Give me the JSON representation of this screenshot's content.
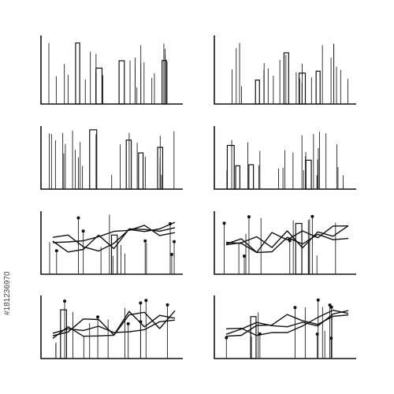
{
  "watermark": "#181236970"
}
